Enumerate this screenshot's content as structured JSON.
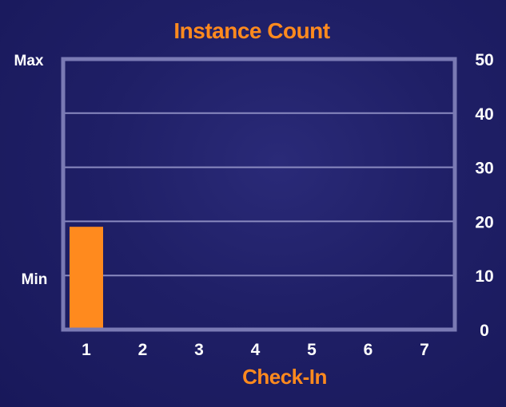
{
  "chart_data": {
    "type": "bar",
    "title": "Instance Count",
    "xlabel": "Check-In",
    "ylabel": "",
    "categories": [
      "1",
      "2",
      "3",
      "4",
      "5",
      "6",
      "7"
    ],
    "values": [
      19,
      null,
      null,
      null,
      null,
      null,
      null
    ],
    "ylim": [
      0,
      50
    ],
    "y_ticks": [
      "0",
      "10",
      "20",
      "30",
      "40",
      "50"
    ],
    "y_tick_values": [
      0,
      10,
      20,
      30,
      40,
      50
    ],
    "left_labels": {
      "max": "Max",
      "min": "Min"
    },
    "min_level": 10,
    "grid": true,
    "colors": {
      "bar": "#ff8a1e",
      "axis": "#7a7ab4",
      "grid": "#8a8ac0",
      "text": "#ffffff",
      "accent": "#ff8a1e"
    }
  }
}
